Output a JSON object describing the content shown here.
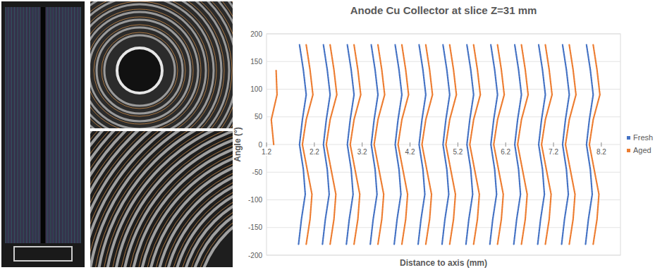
{
  "chart_data": {
    "type": "line",
    "title": "Anode Cu Collector at slice Z=31 mm",
    "x_label": "Distance to axis (mm)",
    "y_label": "Angle (°)",
    "xlim": [
      1.2,
      8.6
    ],
    "xticks": [
      1.2,
      2.2,
      3.2,
      4.2,
      5.2,
      6.2,
      7.2,
      8.2
    ],
    "ylim": [
      -200,
      200
    ],
    "yticks": [
      -200,
      -150,
      -100,
      -50,
      0,
      50,
      100,
      150,
      200
    ],
    "grid": true,
    "legend": "right",
    "series": [
      {
        "name": "Fresh",
        "color": "#4472c4",
        "line_style": "dotted",
        "x": [
          1.87,
          1.93,
          2.01,
          1.97,
          1.89,
          1.95,
          2.03,
          1.97,
          1.89,
          null,
          2.37,
          2.43,
          2.51,
          2.47,
          2.39,
          2.45,
          2.53,
          2.47,
          2.39,
          null,
          2.87,
          2.93,
          3.01,
          2.97,
          2.89,
          2.95,
          3.03,
          2.97,
          2.89,
          null,
          3.37,
          3.43,
          3.51,
          3.47,
          3.39,
          3.45,
          3.53,
          3.47,
          3.39,
          null,
          3.87,
          3.93,
          4.01,
          3.97,
          3.89,
          3.95,
          4.03,
          3.97,
          3.89,
          null,
          4.37,
          4.43,
          4.51,
          4.47,
          4.39,
          4.45,
          4.53,
          4.47,
          4.39,
          null,
          4.87,
          4.93,
          5.01,
          4.97,
          4.89,
          4.95,
          5.03,
          4.97,
          4.89,
          null,
          5.37,
          5.43,
          5.51,
          5.47,
          5.39,
          5.45,
          5.53,
          5.47,
          5.39,
          null,
          5.87,
          5.93,
          6.01,
          5.97,
          5.89,
          5.95,
          6.03,
          5.97,
          5.89,
          null,
          6.37,
          6.43,
          6.51,
          6.47,
          6.39,
          6.45,
          6.53,
          6.47,
          6.39,
          null,
          6.87,
          6.93,
          7.01,
          6.97,
          6.89,
          6.95,
          7.03,
          6.97,
          6.89,
          null,
          7.37,
          7.43,
          7.51,
          7.47,
          7.39,
          7.45,
          7.53,
          7.47,
          7.39,
          null,
          7.87,
          7.93,
          8.01,
          7.97,
          7.89,
          7.95,
          8.03,
          7.97,
          7.89
        ],
        "values": [
          -180,
          -135,
          -90,
          -45,
          0,
          45,
          90,
          135,
          180,
          null,
          -180,
          -135,
          -90,
          -45,
          0,
          45,
          90,
          135,
          180,
          null,
          -180,
          -135,
          -90,
          -45,
          0,
          45,
          90,
          135,
          180,
          null,
          -180,
          -135,
          -90,
          -45,
          0,
          45,
          90,
          135,
          180,
          null,
          -180,
          -135,
          -90,
          -45,
          0,
          45,
          90,
          135,
          180,
          null,
          -180,
          -135,
          -90,
          -45,
          0,
          45,
          90,
          135,
          180,
          null,
          -180,
          -135,
          -90,
          -45,
          0,
          45,
          90,
          135,
          180,
          null,
          -180,
          -135,
          -90,
          -45,
          0,
          45,
          90,
          135,
          180,
          null,
          -180,
          -135,
          -90,
          -45,
          0,
          45,
          90,
          135,
          180,
          null,
          -180,
          -135,
          -90,
          -45,
          0,
          45,
          90,
          135,
          180,
          null,
          -180,
          -135,
          -90,
          -45,
          0,
          45,
          90,
          135,
          180,
          null,
          -180,
          -135,
          -90,
          -45,
          0,
          45,
          90,
          135,
          180,
          null,
          -180,
          -135,
          -90,
          -45,
          0,
          45,
          90,
          135,
          180
        ]
      },
      {
        "name": "Aged",
        "color": "#ed7d31",
        "line_style": "dotted",
        "x": [
          1.35,
          1.3,
          1.42,
          1.4,
          null,
          2.03,
          2.11,
          2.15,
          2.05,
          1.95,
          2.03,
          2.17,
          2.11,
          2.03,
          null,
          2.53,
          2.61,
          2.65,
          2.55,
          2.45,
          2.53,
          2.67,
          2.61,
          2.53,
          null,
          3.03,
          3.11,
          3.15,
          3.05,
          2.95,
          3.03,
          3.17,
          3.11,
          3.03,
          null,
          3.53,
          3.61,
          3.65,
          3.55,
          3.45,
          3.53,
          3.67,
          3.61,
          3.53,
          null,
          4.03,
          4.11,
          4.15,
          4.05,
          3.95,
          4.03,
          4.17,
          4.11,
          4.03,
          null,
          4.53,
          4.61,
          4.65,
          4.55,
          4.45,
          4.53,
          4.67,
          4.61,
          4.53,
          null,
          5.03,
          5.11,
          5.15,
          5.05,
          4.95,
          5.03,
          5.17,
          5.11,
          5.03,
          null,
          5.53,
          5.61,
          5.65,
          5.55,
          5.45,
          5.53,
          5.67,
          5.61,
          5.53,
          null,
          6.03,
          6.11,
          6.15,
          6.05,
          5.95,
          6.03,
          6.17,
          6.11,
          6.03,
          null,
          6.53,
          6.61,
          6.65,
          6.55,
          6.45,
          6.53,
          6.67,
          6.61,
          6.53,
          null,
          7.03,
          7.11,
          7.15,
          7.05,
          6.95,
          7.03,
          7.17,
          7.11,
          7.03,
          null,
          7.53,
          7.61,
          7.65,
          7.55,
          7.45,
          7.53,
          7.67,
          7.61,
          7.53,
          null,
          8.03,
          8.11,
          8.15,
          8.05,
          7.95,
          8.03,
          8.17,
          8.11,
          8.03
        ],
        "values": [
          0,
          45,
          90,
          135,
          null,
          -180,
          -135,
          -90,
          -45,
          0,
          45,
          90,
          135,
          180,
          null,
          -180,
          -135,
          -90,
          -45,
          0,
          45,
          90,
          135,
          180,
          null,
          -180,
          -135,
          -90,
          -45,
          0,
          45,
          90,
          135,
          180,
          null,
          -180,
          -135,
          -90,
          -45,
          0,
          45,
          90,
          135,
          180,
          null,
          -180,
          -135,
          -90,
          -45,
          0,
          45,
          90,
          135,
          180,
          null,
          -180,
          -135,
          -90,
          -45,
          0,
          45,
          90,
          135,
          180,
          null,
          -180,
          -135,
          -90,
          -45,
          0,
          45,
          90,
          135,
          180,
          null,
          -180,
          -135,
          -90,
          -45,
          0,
          45,
          90,
          135,
          180,
          null,
          -180,
          -135,
          -90,
          -45,
          0,
          45,
          90,
          135,
          180,
          null,
          -180,
          -135,
          -90,
          -45,
          0,
          45,
          90,
          135,
          180,
          null,
          -180,
          -135,
          -90,
          -45,
          0,
          45,
          90,
          135,
          180,
          null,
          -180,
          -135,
          -90,
          -45,
          0,
          45,
          90,
          135,
          180,
          null,
          -180,
          -135,
          -90,
          -45,
          0,
          45,
          90,
          135,
          180
        ]
      }
    ]
  }
}
